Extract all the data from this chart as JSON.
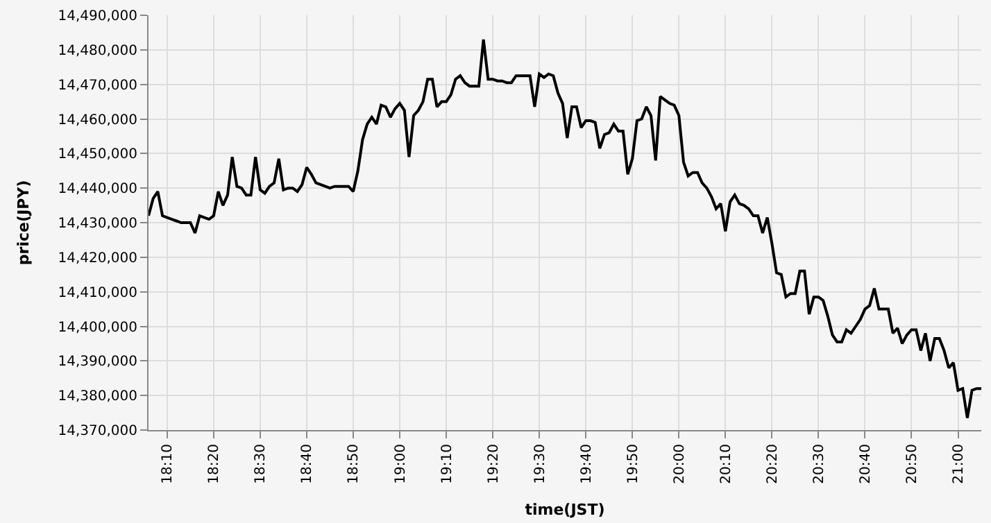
{
  "chart_data": {
    "type": "line",
    "xlabel": "time(JST)",
    "ylabel": "price(JPY)",
    "x": [
      18.1,
      18.1167,
      18.1333,
      18.15,
      18.1667,
      18.1833,
      18.2,
      18.2167,
      18.25,
      18.2667,
      18.2833,
      18.3,
      18.3167,
      18.3333,
      18.35,
      18.3667,
      18.3833,
      18.4,
      18.4167,
      18.4333,
      18.45,
      18.4667,
      18.4833,
      18.5,
      18.5167,
      18.5333,
      18.55,
      18.5667,
      18.5833,
      18.6,
      18.6167,
      18.6333,
      18.65,
      18.6667,
      18.6833,
      18.7,
      18.7167,
      18.75,
      18.7667,
      18.8,
      18.8167,
      18.8333,
      18.85,
      18.8667,
      18.8833,
      18.9,
      18.9167,
      18.9333,
      18.95,
      18.9667,
      18.9833,
      19.0,
      19.0167,
      19.0333,
      19.05,
      19.0667,
      19.0833,
      19.1,
      19.1167,
      19.1333,
      19.15,
      19.1667,
      19.1833,
      19.2,
      19.2167,
      19.2333,
      19.25,
      19.2667,
      19.2833,
      19.3,
      19.3167,
      19.3333,
      19.35,
      19.3667,
      19.3833,
      19.4,
      19.4167,
      19.4333,
      19.4667,
      19.4833,
      19.5,
      19.5167,
      19.5333,
      19.55,
      19.5667,
      19.5833,
      19.6,
      19.6167,
      19.6333,
      19.65,
      19.6667,
      19.6833,
      19.7,
      19.7167,
      19.7333,
      19.75,
      19.7667,
      19.7833,
      19.8,
      19.8167,
      19.8333,
      19.85,
      19.8667,
      19.8833,
      19.9,
      19.9167,
      19.9333,
      19.95,
      19.9667,
      19.9833,
      20.0,
      20.0167,
      20.0333,
      20.05,
      20.0667,
      20.0833,
      20.1,
      20.1167,
      20.1333,
      20.15,
      20.1667,
      20.1833,
      20.2,
      20.2167,
      20.2333,
      20.25,
      20.2667,
      20.2833,
      20.3,
      20.3167,
      20.3333,
      20.35,
      20.3667,
      20.3833,
      20.4,
      20.4167,
      20.4333,
      20.45,
      20.4667,
      20.4833,
      20.5,
      20.5167,
      20.5333,
      20.55,
      20.5667,
      20.5833,
      20.6,
      20.6167,
      20.6333,
      20.65,
      20.6667,
      20.6833,
      20.7,
      20.7167,
      20.7333,
      20.75,
      20.7667,
      20.7833,
      20.8,
      20.8167,
      20.8333,
      20.85,
      20.8667,
      20.8833,
      20.9,
      20.9167,
      20.9333,
      20.95,
      20.9667,
      20.9833,
      21.0,
      21.0167,
      21.0333,
      21.05,
      21.0667,
      21.0833
    ],
    "series": [
      {
        "color": "#000000",
        "values": [
          14432000,
          14437000,
          14439000,
          14432000,
          14431500,
          14431000,
          14430500,
          14430000,
          14430000,
          14427000,
          14432000,
          14431500,
          14431000,
          14432000,
          14439000,
          14435000,
          14438000,
          14449000,
          14440500,
          14440000,
          14438000,
          14438000,
          14449000,
          14439500,
          14438500,
          14440500,
          14441500,
          14448500,
          14439500,
          14440000,
          14440000,
          14439000,
          14441000,
          14446000,
          14444000,
          14441500,
          14441000,
          14440000,
          14440500,
          14440500,
          14440500,
          14439000,
          14445000,
          14454000,
          14458500,
          14460500,
          14458500,
          14464000,
          14463500,
          14460500,
          14463000,
          14464500,
          14462500,
          14449000,
          14461000,
          14462500,
          14465000,
          14471500,
          14471500,
          14463500,
          14465000,
          14465000,
          14467000,
          14471500,
          14472500,
          14470500,
          14469500,
          14469500,
          14469500,
          14483000,
          14471500,
          14471500,
          14471000,
          14471000,
          14470500,
          14470500,
          14472500,
          14472500,
          14472500,
          14463500,
          14473000,
          14472000,
          14473000,
          14472500,
          14467500,
          14464500,
          14454500,
          14463500,
          14463500,
          14457500,
          14459500,
          14459500,
          14459000,
          14451500,
          14455500,
          14456000,
          14458500,
          14456500,
          14456500,
          14444000,
          14448500,
          14459500,
          14460000,
          14463500,
          14461000,
          14448000,
          14466500,
          14465500,
          14464500,
          14464000,
          14461000,
          14447500,
          14443500,
          14444500,
          14444500,
          14441500,
          14440000,
          14437500,
          14434000,
          14435500,
          14427500,
          14436000,
          14438000,
          14435500,
          14435000,
          14434000,
          14432000,
          14432000,
          14427000,
          14431500,
          14424000,
          14415500,
          14415000,
          14408500,
          14409500,
          14409500,
          14416000,
          14416000,
          14403500,
          14408500,
          14408500,
          14407500,
          14403000,
          14397500,
          14395500,
          14395500,
          14399000,
          14398000,
          14400000,
          14402000,
          14405000,
          14406000,
          14411000,
          14405000,
          14405000,
          14405000,
          14398000,
          14399500,
          14395000,
          14397500,
          14399000,
          14399000,
          14393000,
          14398000,
          14390000,
          14396500,
          14396500,
          14393000,
          14388000,
          14389500,
          14381500,
          14382000,
          14373500,
          14381500,
          14382000,
          14382000
        ]
      }
    ],
    "xlim": [
      18.1,
      21.0833
    ],
    "xticks": [
      {
        "value": 18.1667,
        "label": "18:10"
      },
      {
        "value": 18.3333,
        "label": "18:20"
      },
      {
        "value": 18.5,
        "label": "18:30"
      },
      {
        "value": 18.6667,
        "label": "18:40"
      },
      {
        "value": 18.8333,
        "label": "18:50"
      },
      {
        "value": 19.0,
        "label": "19:00"
      },
      {
        "value": 19.1667,
        "label": "19:10"
      },
      {
        "value": 19.3333,
        "label": "19:20"
      },
      {
        "value": 19.5,
        "label": "19:30"
      },
      {
        "value": 19.6667,
        "label": "19:40"
      },
      {
        "value": 19.8333,
        "label": "19:50"
      },
      {
        "value": 20.0,
        "label": "20:00"
      },
      {
        "value": 20.1667,
        "label": "20:10"
      },
      {
        "value": 20.3333,
        "label": "20:20"
      },
      {
        "value": 20.5,
        "label": "20:30"
      },
      {
        "value": 20.6667,
        "label": "20:40"
      },
      {
        "value": 20.8333,
        "label": "20:50"
      },
      {
        "value": 21.0,
        "label": "21:00"
      }
    ],
    "ylim": [
      14370000,
      14490000
    ],
    "yticks": [
      {
        "value": 14370000,
        "label": "14,370,000"
      },
      {
        "value": 14380000,
        "label": "14,380,000"
      },
      {
        "value": 14390000,
        "label": "14,390,000"
      },
      {
        "value": 14400000,
        "label": "14,400,000"
      },
      {
        "value": 14410000,
        "label": "14,410,000"
      },
      {
        "value": 14420000,
        "label": "14,420,000"
      },
      {
        "value": 14430000,
        "label": "14,430,000"
      },
      {
        "value": 14440000,
        "label": "14,440,000"
      },
      {
        "value": 14450000,
        "label": "14,450,000"
      },
      {
        "value": 14460000,
        "label": "14,460,000"
      },
      {
        "value": 14470000,
        "label": "14,470,000"
      },
      {
        "value": 14480000,
        "label": "14,480,000"
      },
      {
        "value": 14490000,
        "label": "14,490,000"
      }
    ],
    "grid": true,
    "marker": "none",
    "line_style": "solid"
  }
}
